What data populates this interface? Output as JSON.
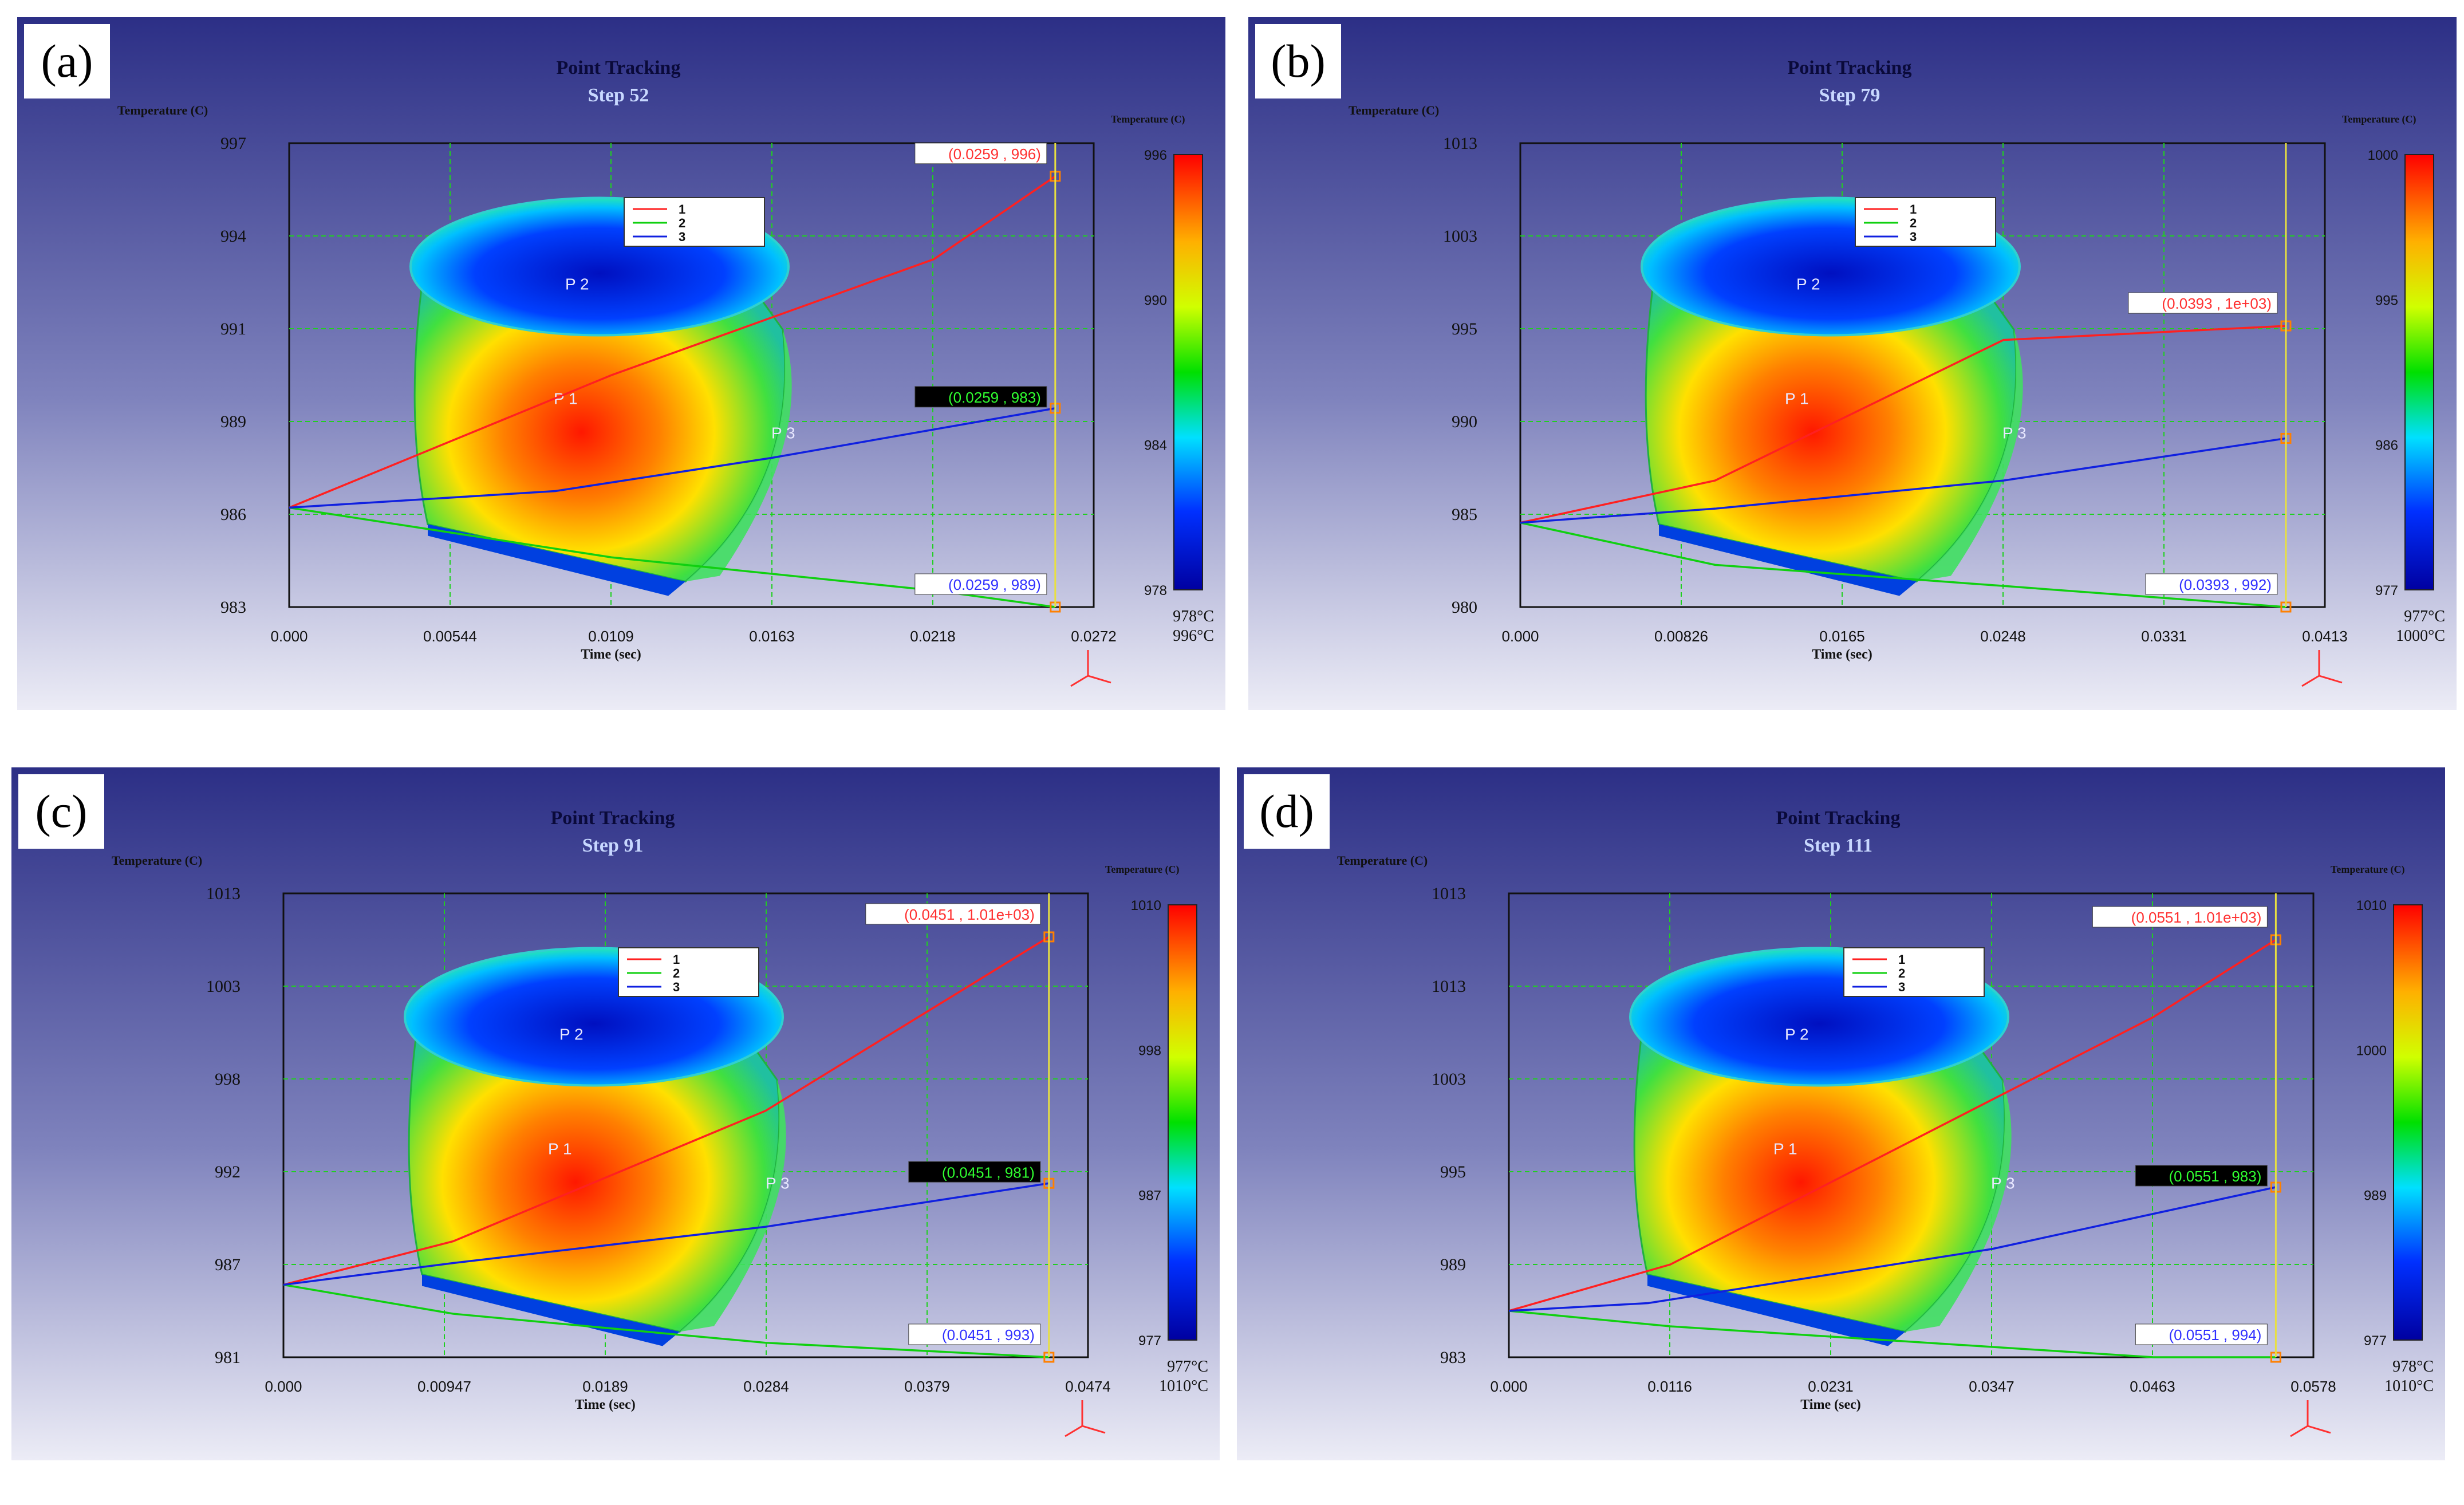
{
  "panels": [
    {
      "letter": "(a)",
      "title": "Point Tracking",
      "step": "Step   52",
      "ylabel": "Temperature (C)",
      "xlabel": "Time (sec)",
      "cb_label": "Temperature (C)",
      "yticks": [
        "983",
        "986",
        "989",
        "991",
        "994",
        "997"
      ],
      "xticks": [
        "0.000",
        "0.00544",
        "0.0109",
        "0.0163",
        "0.0218",
        "0.0272"
      ],
      "cb_ticks": [
        "978",
        "984",
        "990",
        "996"
      ],
      "range_min": "978°C",
      "range_max": "996°C",
      "cursor_labels": [
        "(0.0259 , 996)",
        "(0.0259 , 989)",
        "(0.0259 , 983)"
      ],
      "legend": [
        "1",
        "2",
        "3"
      ],
      "points": [
        "P 1",
        "P 2",
        "P 3"
      ]
    },
    {
      "letter": "(b)",
      "title": "Point Tracking",
      "step": "Step   79",
      "ylabel": "Temperature (C)",
      "xlabel": "Time (sec)",
      "cb_label": "Temperature (C)",
      "yticks": [
        "980",
        "985",
        "990",
        "995",
        "1003",
        "1013"
      ],
      "xticks": [
        "0.000",
        "0.00826",
        "0.0165",
        "0.0248",
        "0.0331",
        "0.0413"
      ],
      "cb_ticks": [
        "977",
        "986",
        "995",
        "1000"
      ],
      "range_min": "977°C",
      "range_max": "1000°C",
      "cursor_labels": [
        "(0.0393 , 1e+03)",
        "(0.0393 , 992)",
        ""
      ],
      "legend": [
        "1",
        "2",
        "3"
      ],
      "points": [
        "P 1",
        "P 2",
        "P 3"
      ]
    },
    {
      "letter": "(c)",
      "title": "Point Tracking",
      "step": "Step   91",
      "ylabel": "Temperature (C)",
      "xlabel": "Time (sec)",
      "cb_label": "Temperature (C)",
      "yticks": [
        "981",
        "987",
        "992",
        "998",
        "1003",
        "1013"
      ],
      "xticks": [
        "0.000",
        "0.00947",
        "0.0189",
        "0.0284",
        "0.0379",
        "0.0474"
      ],
      "cb_ticks": [
        "977",
        "987",
        "998",
        "1010"
      ],
      "range_min": "977°C",
      "range_max": "1010°C",
      "cursor_labels": [
        "(0.0451 , 1.01e+03)",
        "(0.0451 , 993)",
        "(0.0451 , 981)"
      ],
      "legend": [
        "1",
        "2",
        "3"
      ],
      "points": [
        "P 1",
        "P 2",
        "P 3"
      ]
    },
    {
      "letter": "(d)",
      "title": "Point Tracking",
      "step": "Step   111",
      "ylabel": "Temperature (C)",
      "xlabel": "Time (sec)",
      "cb_label": "Temperature (C)",
      "yticks": [
        "983",
        "989",
        "995",
        "1003",
        "1013",
        "1013"
      ],
      "xticks": [
        "0.000",
        "0.0116",
        "0.0231",
        "0.0347",
        "0.0463",
        "0.0578"
      ],
      "cb_ticks": [
        "977",
        "989",
        "1000",
        "1010"
      ],
      "range_min": "978°C",
      "range_max": "1010°C",
      "cursor_labels": [
        "(0.0551 , 1.01e+03)",
        "(0.0551 , 994)",
        "(0.0551 , 983)"
      ],
      "legend": [
        "1",
        "2",
        "3"
      ],
      "points": [
        "P 1",
        "P 2",
        "P 3"
      ]
    }
  ],
  "colors": {
    "p1": "#ff2020",
    "p2": "#10d010",
    "p3": "#1020e0",
    "cursor": "#e8e040"
  },
  "chart_data": [
    {
      "type": "line",
      "title": "Point Tracking",
      "xlabel": "Time (sec)",
      "ylabel": "Temperature (C)",
      "xlim": [
        0,
        0.0272
      ],
      "ylim": [
        983,
        997
      ],
      "series": [
        {
          "name": "1",
          "x": [
            0,
            0.0109,
            0.0218,
            0.0259
          ],
          "y": [
            986,
            990,
            993.5,
            996
          ]
        },
        {
          "name": "2",
          "x": [
            0,
            0.0109,
            0.0218,
            0.0259
          ],
          "y": [
            986,
            984.5,
            983.5,
            983
          ]
        },
        {
          "name": "3",
          "x": [
            0,
            0.009,
            0.0163,
            0.0259
          ],
          "y": [
            986,
            986.5,
            987.5,
            989
          ]
        }
      ]
    },
    {
      "type": "line",
      "title": "Point Tracking",
      "xlabel": "Time (sec)",
      "ylabel": "Temperature (C)",
      "xlim": [
        0,
        0.0413
      ],
      "ylim": [
        980,
        1013
      ],
      "series": [
        {
          "name": "1",
          "x": [
            0,
            0.01,
            0.0248,
            0.0393
          ],
          "y": [
            986,
            989,
            999,
            1000
          ]
        },
        {
          "name": "2",
          "x": [
            0,
            0.01,
            0.0248,
            0.0393
          ],
          "y": [
            986,
            983,
            981.5,
            980
          ]
        },
        {
          "name": "3",
          "x": [
            0,
            0.01,
            0.0248,
            0.0393
          ],
          "y": [
            986,
            987,
            989,
            992
          ]
        }
      ]
    },
    {
      "type": "line",
      "title": "Point Tracking",
      "xlabel": "Time (sec)",
      "ylabel": "Temperature (C)",
      "xlim": [
        0,
        0.0474
      ],
      "ylim": [
        981,
        1013
      ],
      "series": [
        {
          "name": "1",
          "x": [
            0,
            0.01,
            0.0284,
            0.0451
          ],
          "y": [
            986,
            989,
            998,
            1010
          ]
        },
        {
          "name": "2",
          "x": [
            0,
            0.01,
            0.0284,
            0.0451
          ],
          "y": [
            986,
            984,
            982,
            981
          ]
        },
        {
          "name": "3",
          "x": [
            0,
            0.01,
            0.0284,
            0.0451
          ],
          "y": [
            986,
            987.5,
            990,
            993
          ]
        }
      ]
    },
    {
      "type": "line",
      "title": "Point Tracking",
      "xlabel": "Time (sec)",
      "ylabel": "Temperature (C)",
      "xlim": [
        0,
        0.0578
      ],
      "ylim": [
        983,
        1013
      ],
      "series": [
        {
          "name": "1",
          "x": [
            0,
            0.0116,
            0.0463,
            0.0551
          ],
          "y": [
            986,
            989,
            1005,
            1010
          ]
        },
        {
          "name": "2",
          "x": [
            0,
            0.0116,
            0.0463,
            0.0551
          ],
          "y": [
            986,
            985,
            983,
            983
          ]
        },
        {
          "name": "3",
          "x": [
            0,
            0.01,
            0.0347,
            0.0551
          ],
          "y": [
            986,
            986.5,
            990,
            994
          ]
        }
      ]
    }
  ]
}
